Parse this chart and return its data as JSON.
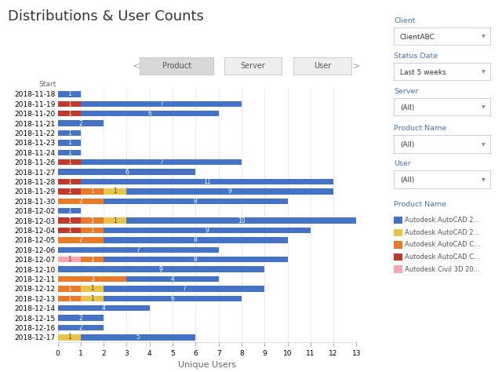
{
  "title": "Distributions & User Counts",
  "xlabel": "Unique Users",
  "ylabel": "Start",
  "dates": [
    "2018-11-18",
    "2018-11-19",
    "2018-11-20",
    "2018-11-21",
    "2018-11-22",
    "2018-11-23",
    "2018-11-24",
    "2018-11-26",
    "2018-11-27",
    "2018-11-28",
    "2018-11-29",
    "2018-11-30",
    "2018-12-02",
    "2018-12-03",
    "2018-12-04",
    "2018-12-05",
    "2018-12-06",
    "2018-12-07",
    "2018-12-10",
    "2018-12-11",
    "2018-12-12",
    "2018-12-13",
    "2018-12-14",
    "2018-12-15",
    "2018-12-16",
    "2018-12-17"
  ],
  "colors": [
    "#4472C4",
    "#E8C44A",
    "#E87B2A",
    "#C0392B",
    "#F4A6B0"
  ],
  "seg_order": [
    "red",
    "pink",
    "orange",
    "yellow",
    "blue"
  ],
  "bar_data": {
    "red": [
      0,
      1,
      1,
      0,
      0,
      0,
      0,
      1,
      0,
      1,
      1,
      0,
      0,
      1,
      1,
      0,
      0,
      0,
      0,
      0,
      0,
      0,
      0,
      0,
      0,
      0
    ],
    "pink": [
      0,
      0,
      0,
      0,
      0,
      0,
      0,
      0,
      0,
      0,
      0,
      0,
      0,
      0,
      0,
      0,
      0,
      1,
      0,
      0,
      0,
      0,
      0,
      0,
      0,
      0
    ],
    "orange": [
      0,
      0,
      0,
      0,
      0,
      0,
      0,
      0,
      0,
      0,
      1,
      2,
      0,
      1,
      1,
      2,
      0,
      1,
      0,
      3,
      1,
      1,
      0,
      0,
      0,
      0
    ],
    "yellow": [
      0,
      0,
      0,
      0,
      0,
      0,
      0,
      0,
      0,
      0,
      1,
      0,
      0,
      1,
      0,
      0,
      0,
      0,
      0,
      0,
      1,
      1,
      0,
      0,
      0,
      1
    ],
    "blue": [
      1,
      7,
      6,
      2,
      1,
      1,
      1,
      7,
      6,
      11,
      9,
      8,
      1,
      10,
      9,
      8,
      7,
      8,
      9,
      4,
      7,
      6,
      4,
      2,
      2,
      5
    ]
  },
  "bar_labels": {
    "red": [
      0,
      1,
      1,
      0,
      0,
      0,
      0,
      1,
      0,
      1,
      1,
      0,
      0,
      1,
      1,
      0,
      0,
      0,
      0,
      0,
      0,
      0,
      0,
      0,
      0,
      0
    ],
    "pink": [
      0,
      0,
      0,
      0,
      0,
      0,
      0,
      0,
      0,
      0,
      0,
      0,
      0,
      0,
      0,
      0,
      0,
      1,
      0,
      0,
      0,
      0,
      0,
      0,
      0,
      0
    ],
    "orange": [
      0,
      0,
      0,
      0,
      0,
      0,
      0,
      0,
      0,
      0,
      1,
      2,
      0,
      1,
      1,
      2,
      0,
      1,
      0,
      3,
      1,
      1,
      0,
      0,
      0,
      0
    ],
    "yellow": [
      0,
      0,
      0,
      0,
      0,
      0,
      0,
      0,
      0,
      0,
      1,
      0,
      0,
      1,
      0,
      0,
      0,
      0,
      0,
      0,
      1,
      1,
      0,
      0,
      0,
      1
    ],
    "blue": [
      1,
      7,
      6,
      2,
      1,
      1,
      1,
      7,
      6,
      11,
      9,
      8,
      1,
      10,
      9,
      8,
      7,
      8,
      9,
      4,
      7,
      6,
      4,
      2,
      2,
      5
    ]
  },
  "xlim": [
    0,
    13
  ],
  "background_color": "#FFFFFF",
  "tab_labels": [
    "Product",
    "Server",
    "User"
  ],
  "sidebar_items": {
    "Client": "ClientABC",
    "Status Date": "Last 5 weeks",
    "Server": "(All)",
    "Product Name": "(All)",
    "User": "(All)"
  },
  "legend_labels": [
    "Autodesk AutoCAD 2...",
    "Autodesk AutoCAD 2...",
    "Autodesk AutoCAD C...",
    "Autodesk AutoCAD C...",
    "Autodesk Civil 3D 20..."
  ],
  "legend_colors": [
    "#4472C4",
    "#E8C44A",
    "#E87B2A",
    "#C0392B",
    "#F4A6B0"
  ],
  "title_fontsize": 13,
  "tick_fontsize": 6.5,
  "label_fontsize": 8
}
